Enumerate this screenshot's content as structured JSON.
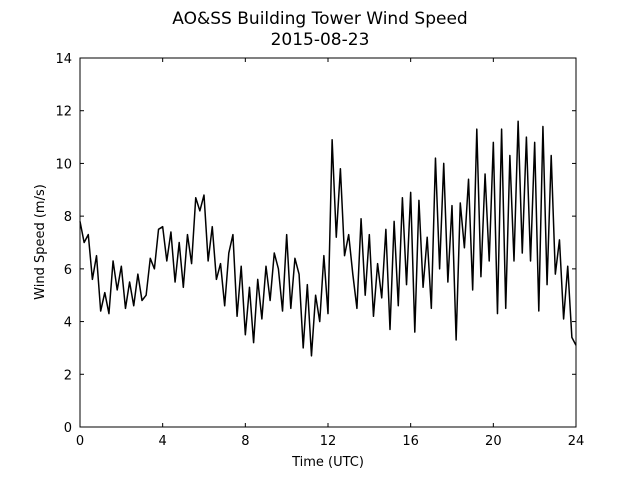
{
  "chart_data": {
    "type": "line",
    "title": "AO&SS Building Tower Wind Speed",
    "subtitle": "2015-08-23",
    "x_label": "Time (UTC)",
    "y_label": "Wind Speed (m/s)",
    "x": [
      0,
      0.2,
      0.4,
      0.6,
      0.8,
      1.0,
      1.2,
      1.4,
      1.6,
      1.8,
      2.0,
      2.2,
      2.4,
      2.6,
      2.8,
      3.0,
      3.2,
      3.4,
      3.6,
      3.8,
      4.0,
      4.2,
      4.4,
      4.6,
      4.8,
      5.0,
      5.2,
      5.4,
      5.6,
      5.8,
      6.0,
      6.2,
      6.4,
      6.6,
      6.8,
      7.0,
      7.2,
      7.4,
      7.6,
      7.8,
      8.0,
      8.2,
      8.4,
      8.6,
      8.8,
      9.0,
      9.2,
      9.4,
      9.6,
      9.8,
      10.0,
      10.2,
      10.4,
      10.6,
      10.8,
      11.0,
      11.2,
      11.4,
      11.6,
      11.8,
      12.0,
      12.2,
      12.4,
      12.6,
      12.8,
      13.0,
      13.2,
      13.4,
      13.6,
      13.8,
      14.0,
      14.2,
      14.4,
      14.6,
      14.8,
      15.0,
      15.2,
      15.4,
      15.6,
      15.8,
      16.0,
      16.2,
      16.4,
      16.6,
      16.8,
      17.0,
      17.2,
      17.4,
      17.6,
      17.8,
      18.0,
      18.2,
      18.4,
      18.6,
      18.8,
      19.0,
      19.2,
      19.4,
      19.6,
      19.8,
      20.0,
      20.2,
      20.4,
      20.6,
      20.8,
      21.0,
      21.2,
      21.4,
      21.6,
      21.8,
      22.0,
      22.2,
      22.4,
      22.6,
      22.8,
      23.0,
      23.2,
      23.4,
      23.6,
      23.8,
      24.0
    ],
    "series": [
      {
        "color": "#000000",
        "values": [
          7.8,
          7.0,
          7.3,
          5.6,
          6.5,
          4.4,
          5.1,
          4.3,
          6.3,
          5.2,
          6.1,
          4.5,
          5.5,
          4.6,
          5.8,
          4.8,
          5.0,
          6.4,
          6.0,
          7.5,
          7.6,
          6.3,
          7.4,
          5.5,
          7.0,
          5.3,
          7.3,
          6.2,
          8.7,
          8.2,
          8.8,
          6.3,
          7.6,
          5.6,
          6.2,
          4.6,
          6.6,
          7.3,
          4.2,
          6.1,
          3.5,
          5.3,
          3.2,
          5.6,
          4.1,
          6.1,
          4.8,
          6.6,
          6.0,
          4.4,
          7.3,
          4.5,
          6.4,
          5.8,
          3.0,
          5.4,
          2.7,
          5.0,
          4.0,
          6.5,
          4.3,
          10.9,
          7.2,
          9.8,
          6.5,
          7.3,
          5.8,
          4.5,
          7.9,
          5.0,
          7.3,
          4.2,
          6.2,
          4.9,
          7.5,
          3.7,
          7.8,
          4.6,
          8.7,
          5.4,
          8.9,
          3.6,
          8.6,
          5.3,
          7.2,
          4.5,
          10.2,
          6.0,
          10.0,
          5.5,
          8.4,
          3.3,
          8.5,
          6.8,
          9.4,
          5.2,
          11.3,
          5.7,
          9.6,
          6.3,
          10.8,
          4.3,
          11.3,
          4.5,
          10.3,
          6.3,
          11.6,
          6.6,
          11.0,
          6.3,
          10.8,
          4.4,
          11.4,
          5.4,
          10.3,
          5.8,
          7.1,
          4.1,
          6.1,
          3.4,
          3.1
        ]
      }
    ],
    "xlim": [
      0,
      24
    ],
    "xticks": [
      0,
      4,
      8,
      12,
      16,
      20,
      24
    ],
    "ylim": [
      0,
      14
    ],
    "yticks": [
      0,
      2,
      4,
      6,
      8,
      10,
      12,
      14
    ]
  }
}
